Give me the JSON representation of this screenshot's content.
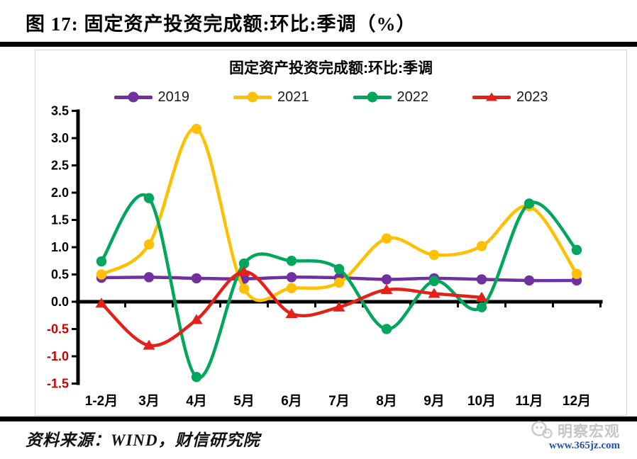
{
  "header": {
    "title": "图 17:  固定资产投资完成额:环比:季调（%）"
  },
  "chart": {
    "title": "固定资产投资完成额:环比:季调"
  },
  "chart_data": {
    "type": "line",
    "title": "固定资产投资完成额:环比:季调",
    "categories": [
      "1-2月",
      "3月",
      "4月",
      "5月",
      "6月",
      "7月",
      "8月",
      "9月",
      "10月",
      "11月",
      "12月"
    ],
    "series": [
      {
        "name": "2019",
        "color": "#7030A0",
        "marker": "circle",
        "values": [
          0.44,
          0.45,
          0.43,
          0.42,
          0.45,
          0.44,
          0.41,
          0.43,
          0.41,
          0.39,
          0.39
        ]
      },
      {
        "name": "2021",
        "color": "#FFC000",
        "marker": "circle",
        "values": [
          0.5,
          1.05,
          3.17,
          0.24,
          0.25,
          0.35,
          1.16,
          0.86,
          1.02,
          1.75,
          0.51
        ]
      },
      {
        "name": "2022",
        "color": "#00A65C",
        "marker": "circle",
        "values": [
          0.74,
          1.9,
          -1.38,
          0.7,
          0.75,
          0.6,
          -0.5,
          0.38,
          -0.1,
          1.8,
          0.95
        ]
      },
      {
        "name": "2023",
        "color": "#E32119",
        "marker": "triangle",
        "values": [
          -0.03,
          -0.8,
          -0.33,
          0.55,
          -0.22,
          -0.1,
          0.22,
          0.15,
          0.08,
          null,
          null
        ]
      }
    ],
    "ylim": [
      -1.5,
      3.5
    ],
    "ytick_step": 0.5,
    "xlabel": "",
    "ylabel": "",
    "grid": false,
    "smoothed": true,
    "legend_position": "top",
    "axis_color": "#000000",
    "negative_tick_label_color": "#CC0000"
  },
  "footer": {
    "source": "资料来源：WIND，财信研究院"
  },
  "watermark": {
    "name": "明察宏观",
    "url": "www.365jz.com"
  }
}
